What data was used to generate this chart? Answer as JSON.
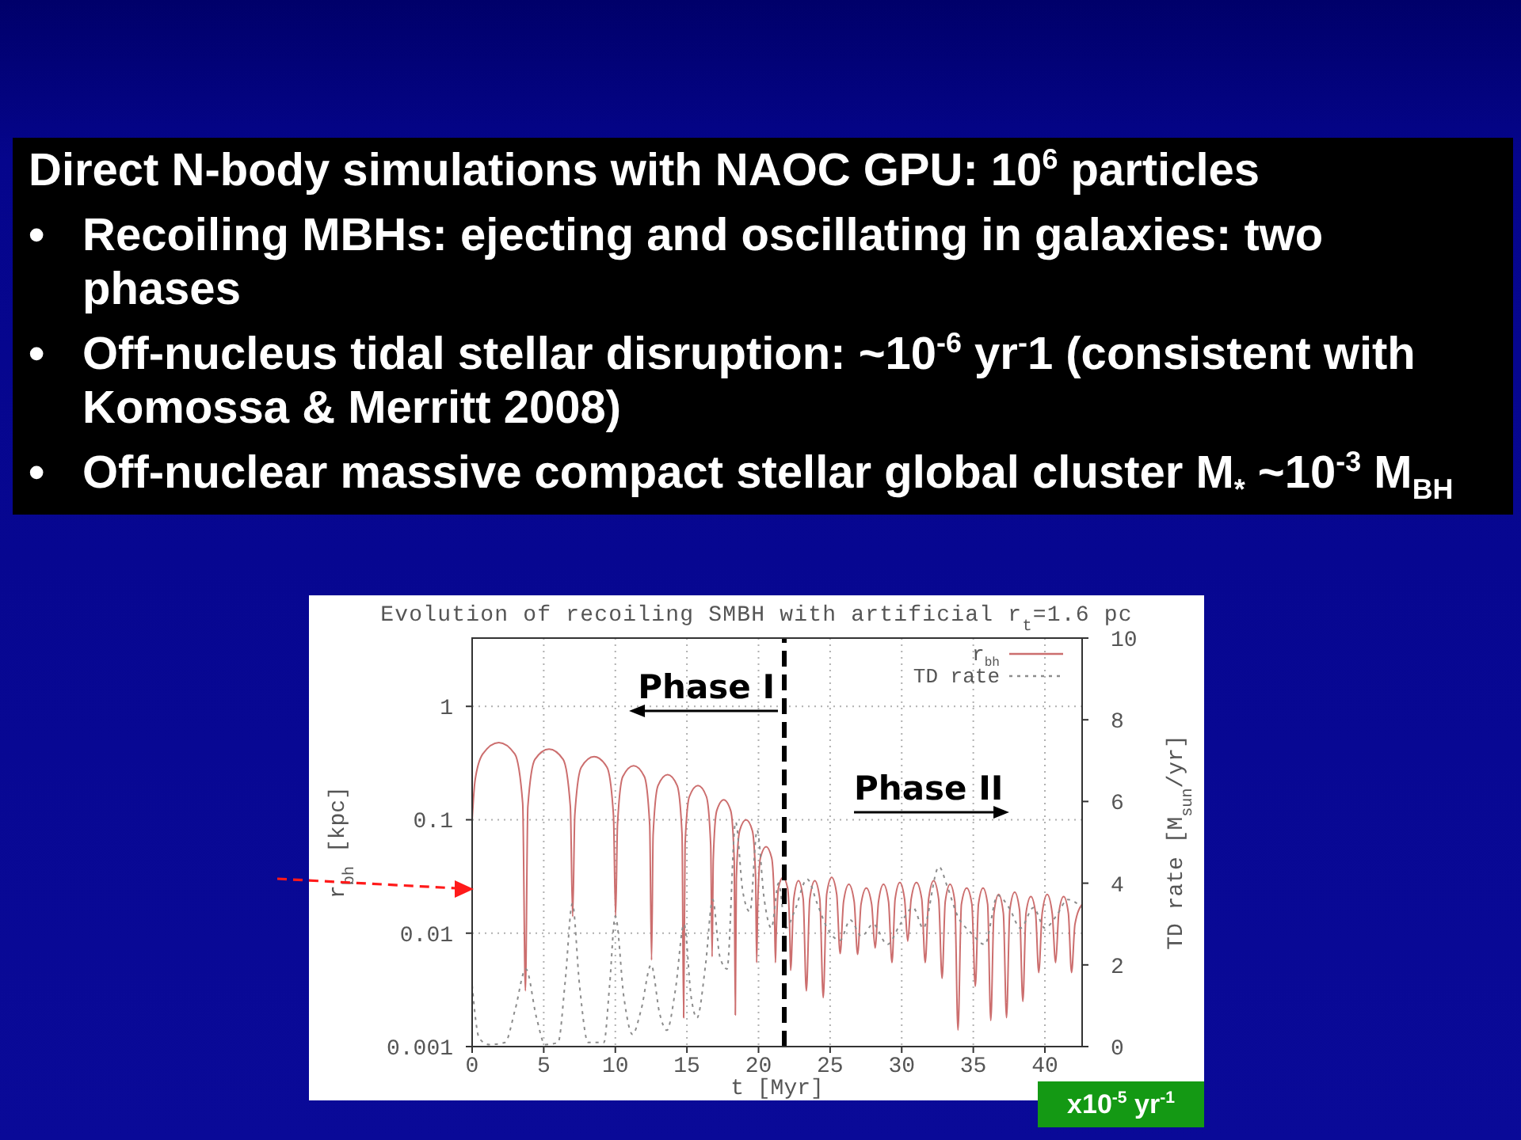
{
  "chart_data": {
    "type": "line",
    "title": "Evolution of recoiling SMBH with artificial r$_{t}$=1.6 pc",
    "xlabel": "t [Myr]",
    "ylabel": "r$_{bh}$ [kpc]",
    "y2label": "TD rate [M$_{sun}$/yr]",
    "annotations": [
      "Direct N-body simulations with NAOC GPU: 10$^{6}$ particles",
      "• Recoiling MBHs: ejecting and oscillating in galaxies: two\nphases",
      "• Off-nucleus tidal stellar disruption: ~10$^{-6}$ yr$^{-}$1 (consistent with\nKomossa & Merritt 2008)",
      "• Off-nuclear massive compact stellar global cluster  M$_{*}$ ~10$^{-3}$ M$_{BH}$",
      "Phase I",
      "Phase II",
      "x10$^{-5}$ yr$^{-1}$"
    ],
    "xlim": [
      0,
      42.6
    ],
    "xticks": [
      0,
      5,
      10,
      15,
      20,
      25,
      30,
      35,
      40
    ],
    "ylim": [
      0.001,
      4
    ],
    "yticks": [
      0.001,
      0.01,
      0.1,
      1
    ],
    "y2lim": [
      0,
      10
    ],
    "y2ticks": [
      0,
      2,
      4,
      6,
      8,
      10
    ],
    "log": true,
    "grid": true,
    "legend": "top right",
    "marker": "none",
    "ref_lines": [
      {
        "axis": "x",
        "value": 21.8,
        "color": "#000000",
        "line_style": "dashed"
      }
    ],
    "series": [
      {
        "name": "r$_{bh}$",
        "color": "#cc6e6e",
        "line_style": "solid",
        "x": [
          0,
          0.2,
          0.74,
          1.86,
          2.98,
          3.53,
          3.72,
          3.89,
          4.38,
          5.37,
          6.36,
          6.86,
          7.02,
          7.17,
          7.62,
          8.52,
          9.42,
          9.87,
          10.02,
          10.15,
          10.52,
          11.28,
          12.03,
          12.4,
          12.53,
          12.64,
          12.98,
          13.65,
          14.32,
          14.66,
          14.77,
          14.87,
          15.17,
          15.77,
          16.36,
          16.66,
          16.76,
          16.84,
          17.08,
          17.57,
          18.06,
          18.3,
          18.38,
          18.45,
          18.68,
          19.13,
          19.57,
          19.8,
          19.87,
          19.94,
          20.13,
          20.53,
          20.92,
          21.11,
          21.18,
          21.23,
          21.39,
          21.71,
          22.03,
          22.19,
          22.24,
          22.46,
          22.79,
          23.12,
          23.34,
          23.58,
          23.93,
          24.28,
          24.52,
          24.76,
          25.11,
          25.46,
          25.7,
          25.94,
          26.31,
          26.68,
          26.92,
          27.16,
          27.53,
          27.9,
          28.14,
          28.38,
          28.73,
          29.08,
          29.32,
          29.54,
          29.87,
          30.2,
          30.42,
          30.66,
          31.03,
          31.4,
          31.64,
          31.88,
          32.23,
          32.58,
          32.82,
          33.04,
          33.38,
          33.71,
          33.93,
          34.17,
          34.54,
          34.9,
          35.14,
          35.36,
          35.68,
          36.0,
          36.22,
          36.44,
          36.77,
          37.1,
          37.32,
          37.55,
          37.89,
          38.23,
          38.46,
          38.68,
          39.02,
          39.35,
          39.57,
          39.81,
          40.16,
          40.51,
          40.75,
          40.97,
          41.31,
          41.64,
          41.86,
          42.1,
          42.6
        ],
        "values": [
          0.1,
          0.22,
          0.38,
          0.48,
          0.38,
          0.14,
          0.0031,
          0.13,
          0.34,
          0.42,
          0.34,
          0.13,
          0.014,
          0.11,
          0.29,
          0.36,
          0.29,
          0.11,
          0.014,
          0.09,
          0.24,
          0.3,
          0.24,
          0.09,
          0.0058,
          0.074,
          0.2,
          0.25,
          0.2,
          0.074,
          0.0018,
          0.06,
          0.16,
          0.2,
          0.16,
          0.06,
          0.0062,
          0.045,
          0.12,
          0.15,
          0.12,
          0.045,
          0.0019,
          0.03,
          0.08,
          0.1,
          0.08,
          0.03,
          0.0055,
          0.017,
          0.046,
          0.058,
          0.046,
          0.017,
          0.0055,
          0.0093,
          0.025,
          0.031,
          0.025,
          0.0093,
          0.0047,
          0.02,
          0.029,
          0.02,
          0.0031,
          0.02,
          0.029,
          0.02,
          0.0027,
          0.022,
          0.031,
          0.022,
          0.0066,
          0.019,
          0.027,
          0.019,
          0.0065,
          0.018,
          0.025,
          0.018,
          0.0074,
          0.019,
          0.027,
          0.019,
          0.0055,
          0.02,
          0.028,
          0.02,
          0.0085,
          0.02,
          0.028,
          0.02,
          0.0055,
          0.02,
          0.029,
          0.02,
          0.004,
          0.019,
          0.027,
          0.019,
          0.0014,
          0.018,
          0.025,
          0.018,
          0.0034,
          0.018,
          0.025,
          0.018,
          0.0017,
          0.015,
          0.022,
          0.015,
          0.0018,
          0.016,
          0.023,
          0.016,
          0.0025,
          0.015,
          0.021,
          0.015,
          0.0045,
          0.015,
          0.022,
          0.015,
          0.0055,
          0.015,
          0.021,
          0.015,
          0.0045,
          0.012,
          0.018
        ]
      },
      {
        "name": "TD rate",
        "color": "#8c8c8c",
        "line_style": "dotted",
        "axis": "y2",
        "x": [
          0,
          0.5,
          1.2,
          2.3,
          3.0,
          3.75,
          4.5,
          5.1,
          6.0,
          6.5,
          7.0,
          7.5,
          8.1,
          9.2,
          9.6,
          10.0,
          10.6,
          11.2,
          11.8,
          12.5,
          13.1,
          13.6,
          14.2,
          14.8,
          15.3,
          15.7,
          16.3,
          16.8,
          17.3,
          17.8,
          18.4,
          18.9,
          19.4,
          19.9,
          20.4,
          20.9,
          21.4,
          21.9,
          22.5,
          23.4,
          24.1,
          24.8,
          25.7,
          26.4,
          27.2,
          28.0,
          29.0,
          29.9,
          30.8,
          31.5,
          32.6,
          33.2,
          33.9,
          34.8,
          35.8,
          36.7,
          37.5,
          38.3,
          39.2,
          40.0,
          40.8,
          41.6,
          42.6
        ],
        "values": [
          1.5,
          0.2,
          0.05,
          0.1,
          0.9,
          1.9,
          0.7,
          0.05,
          0.1,
          1.6,
          3.5,
          1.5,
          0.1,
          0.1,
          1.5,
          3.2,
          1.2,
          0.3,
          0.9,
          2.0,
          0.8,
          0.4,
          1.4,
          3.0,
          1.2,
          0.7,
          2.0,
          3.6,
          2.2,
          1.9,
          5.5,
          3.8,
          3.3,
          5.3,
          3.6,
          2.9,
          4.0,
          2.9,
          3.3,
          4.1,
          3.5,
          2.9,
          2.6,
          3.1,
          2.7,
          3.0,
          2.5,
          3.0,
          3.4,
          2.9,
          4.4,
          3.9,
          3.2,
          2.8,
          2.5,
          3.7,
          3.4,
          2.9,
          3.4,
          2.9,
          3.2,
          3.6,
          3.4
        ]
      }
    ]
  }
}
